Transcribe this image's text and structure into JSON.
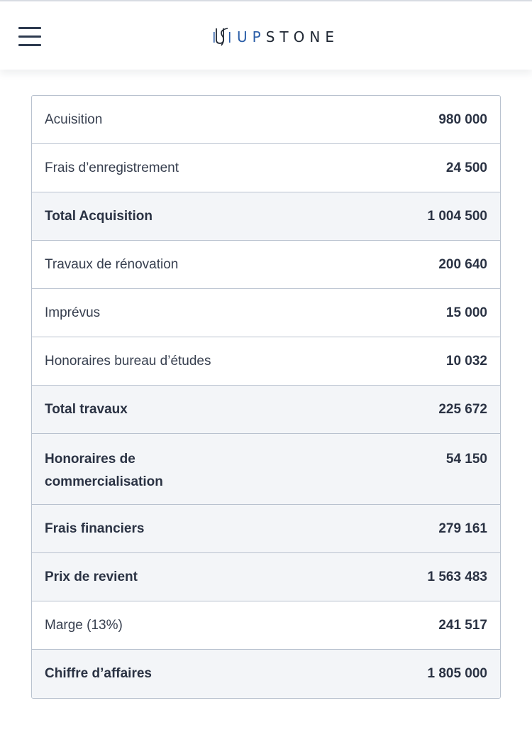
{
  "header": {
    "menu_icon": "hamburger-menu-icon",
    "logo": {
      "mark_icon": "upstone-logo-mark-icon",
      "text_up": "UP",
      "text_stone": "STONE",
      "accent_color": "#2b5ea8"
    }
  },
  "table": {
    "rows": [
      {
        "label": "Acuisition",
        "value": "980 000",
        "emphasis": false
      },
      {
        "label": "Frais d’enregistrement",
        "value": "24 500",
        "emphasis": false
      },
      {
        "label": "Total Acquisition",
        "value": "1 004 500",
        "emphasis": true
      },
      {
        "label": "Travaux de rénovation",
        "value": "200 640",
        "emphasis": false
      },
      {
        "label": "Imprévus",
        "value": "15 000",
        "emphasis": false
      },
      {
        "label": "Honoraires bureau d’études",
        "value": "10 032",
        "emphasis": false
      },
      {
        "label": "Total travaux",
        "value": "225 672",
        "emphasis": true
      },
      {
        "label": "Honoraires de commercialisation",
        "value": "54 150",
        "emphasis": true
      },
      {
        "label": "Frais financiers",
        "value": "279 161",
        "emphasis": true
      },
      {
        "label": "Prix de revient",
        "value": "1 563 483",
        "emphasis": true
      },
      {
        "label": "Marge (13%)",
        "value": "241 517",
        "emphasis": false
      },
      {
        "label": "Chiffre d’affaires",
        "value": "1 805 000",
        "emphasis": true
      }
    ]
  }
}
